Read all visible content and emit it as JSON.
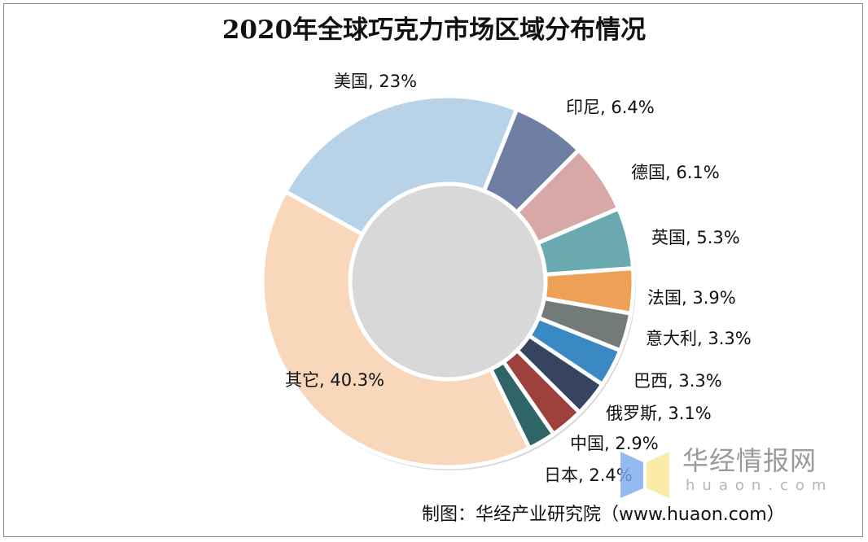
{
  "chart_data": {
    "type": "pie",
    "donut": true,
    "title": "2020年全球巧克力市场区域分布情况",
    "unit": "%",
    "categories": [
      "美国",
      "印尼",
      "德国",
      "英国",
      "法国",
      "意大利",
      "巴西",
      "俄罗斯",
      "中国",
      "日本",
      "其它"
    ],
    "values": [
      23,
      6.4,
      6.1,
      5.3,
      3.9,
      3.3,
      3.3,
      3.1,
      2.9,
      2.4,
      40.3
    ],
    "data_labels": [
      "美国, 23%",
      "印尼, 6.4%",
      "德国, 6.1%",
      "英国, 5.3%",
      "法国, 3.9%",
      "意大利, 3.3%",
      "巴西, 3.3%",
      "俄罗斯, 3.1%",
      "中国, 2.9%",
      "日本, 2.4%",
      "其它, 40.3%"
    ],
    "colors": [
      "#b8d3e7",
      "#6f7ea3",
      "#d8a7a7",
      "#6aa9af",
      "#eda056",
      "#727a7a",
      "#3b89c4",
      "#37435f",
      "#9e403c",
      "#2f6567",
      "#f9d7ba"
    ],
    "legend": "none"
  },
  "source": "制图：华经产业研究院（www.huaon.com）",
  "watermark": {
    "name": "华经情报网",
    "domain": "huaon.com"
  }
}
